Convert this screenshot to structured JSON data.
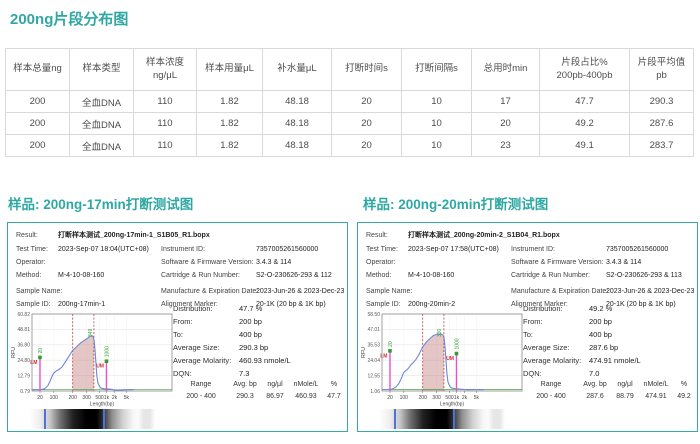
{
  "colors": {
    "accent_teal": "#2fa8a3",
    "curve_blue": "#6e87d8",
    "marker_magenta": "#ea4fd2",
    "marker_green": "#2f9e2f",
    "region_red": "#c03a3a",
    "gel_line_blue": "#4d72d8"
  },
  "page": {
    "title": "200ng片段分布图"
  },
  "table": {
    "headers": [
      "样本总量ng",
      "样本类型",
      "样本浓度\nng/μL",
      "样本用量μL",
      "补水量μL",
      "打断时间s",
      "打断间隔s",
      "总用时min",
      "片段占比%\n200pb-400pb",
      "片段平均值\npb"
    ],
    "rows": [
      [
        "200",
        "全血DNA",
        "110",
        "1.82",
        "48.18",
        "20",
        "10",
        "17",
        "47.7",
        "290.3"
      ],
      [
        "200",
        "全血DNA",
        "110",
        "1.82",
        "48.18",
        "20",
        "10",
        "20",
        "49.2",
        "287.6"
      ],
      [
        "200",
        "全血DNA",
        "110",
        "1.82",
        "48.18",
        "20",
        "10",
        "23",
        "49.1",
        "283.7"
      ]
    ]
  },
  "section_titles": [
    "样品: 200ng-17min打断测试图",
    "样品: 200ng-20min打断测试图"
  ],
  "field_labels": {
    "result": "Result:",
    "test_time": "Test Time:",
    "operator": "Operator:",
    "method": "Method:",
    "sample_name": "Sample Name:",
    "sample_id": "Sample ID:",
    "instrument_id": "Instrument ID:",
    "software_firmware": "Software & Firmware Version:",
    "cartridge_run": "Cartridge & Run Number:",
    "manufacture_expiration": "Manufacture & Expiration Date:",
    "alignment_marker": "Alignment Marker:"
  },
  "stat_labels": {
    "distribution": "Distribution:",
    "from": "From:",
    "to": "To:",
    "average_size": "Average Size:",
    "average_molarity": "Average Molarity:",
    "dqn": "DQN:"
  },
  "range_headers": {
    "range": "Range",
    "avg_bp": "Avg. bp",
    "ng_ul": "ng/μl",
    "nmole": "nMole/L",
    "pct": "%"
  },
  "panels": [
    {
      "result": "打断样本测试_200ng-17min-1_S1B05_R1.bopx",
      "test_time": "2023-Sep-07 18:04(UTC+08)",
      "operator": "",
      "method": "M-4-10-08-160",
      "sample_name": "",
      "sample_id": "200ng-17min-1",
      "instrument_id": "7357005261560000",
      "software_firmware": "3.4.3 & 114",
      "cartridge_run": "S2-O-230626-293 & 112",
      "manufacture_expiration": "2023-Jun-26 & 2023-Dec-23",
      "alignment_marker": "20-1K (20 bp & 1K bp)",
      "distribution": "47.7 %",
      "from": "200 bp",
      "to": "400 bp",
      "average_size": "290.3 bp",
      "average_molarity": "460.93 nmole/L",
      "dqn": "7.3",
      "range_row": {
        "range": "200 - 400",
        "avg_bp": "290.3",
        "ng_ul": "86.97",
        "nmole": "460.93",
        "pct": "47.7"
      }
    },
    {
      "result": "打断样本测试_200ng-20min-2_S1B04_R1.bopx",
      "test_time": "2023-Sep-07 17:58(UTC+08)",
      "operator": "",
      "method": "M-4-10-08-160",
      "sample_name": "",
      "sample_id": "200ng-20min-2",
      "instrument_id": "7357005261560000",
      "software_firmware": "3.4.3 & 114",
      "cartridge_run": "S2-O-230626-293 & 113",
      "manufacture_expiration": "2023-Jun-26 & 2023-Dec-23",
      "alignment_marker": "20-1K (20 bp & 1K bp)",
      "distribution": "49.2 %",
      "from": "200 bp",
      "to": "400 bp",
      "average_size": "287.6 bp",
      "average_molarity": "474.91 nmole/L",
      "dqn": "7.0",
      "range_row": {
        "range": "200 - 400",
        "avg_bp": "287.6",
        "ng_ul": "88.79",
        "nmole": "474.91",
        "pct": "49.2"
      }
    }
  ],
  "chart_data": [
    {
      "type": "line",
      "xlabel": "Length(bp)",
      "ylabel": "RFU",
      "ylim": [
        0.79,
        60.82
      ],
      "y_ticks": [
        "0.79",
        "12.79",
        "24.80",
        "36.80",
        "48.81",
        "60.82"
      ],
      "x_ticks": [
        {
          "label": "20",
          "bp": 20,
          "pos": 0.057
        },
        {
          "label": "100",
          "bp": 100,
          "pos": 0.156
        },
        {
          "label": "200",
          "bp": 200,
          "pos": 0.291
        },
        {
          "label": "300",
          "bp": 300,
          "pos": 0.39
        },
        {
          "label": "500",
          "bp": 500,
          "pos": 0.482
        },
        {
          "label": "1k",
          "bp": 1000,
          "pos": 0.532
        },
        {
          "label": "2k",
          "bp": 2000,
          "pos": 0.589
        },
        {
          "label": "5k",
          "bp": 5000,
          "pos": 0.674
        }
      ],
      "curve": [
        [
          8,
          1.8
        ],
        [
          15,
          1.8
        ],
        [
          22,
          1.9
        ],
        [
          35,
          2.5
        ],
        [
          50,
          5
        ],
        [
          65,
          8.5
        ],
        [
          80,
          12
        ],
        [
          95,
          14.5
        ],
        [
          110,
          16.5
        ],
        [
          120,
          17.5
        ],
        [
          135,
          19.5
        ],
        [
          155,
          24
        ],
        [
          175,
          28
        ],
        [
          200,
          32.5
        ],
        [
          225,
          35.5
        ],
        [
          255,
          38.5
        ],
        [
          285,
          40.5
        ],
        [
          315,
          42
        ],
        [
          345,
          43.5
        ],
        [
          370,
          44
        ],
        [
          390,
          43
        ],
        [
          405,
          40
        ],
        [
          420,
          32
        ],
        [
          435,
          22
        ],
        [
          450,
          13
        ],
        [
          470,
          7
        ],
        [
          500,
          4.5
        ],
        [
          560,
          3.2
        ],
        [
          650,
          2.8
        ],
        [
          800,
          2.5
        ],
        [
          1000,
          2.4
        ],
        [
          1400,
          2.2
        ],
        [
          2000,
          1.6
        ],
        [
          3000,
          1.5
        ],
        [
          5000,
          1.8
        ],
        [
          9000,
          1.9
        ]
      ],
      "markers": [
        {
          "bp": 20,
          "rfu": 27,
          "label": "20",
          "tag": "LM"
        },
        {
          "bp": 1000,
          "rfu": 24,
          "label": "1000",
          "tag": "UM"
        }
      ],
      "region": {
        "from_bp": 200,
        "to_bp": 400
      },
      "peak_label": {
        "bp": 349,
        "text": "349"
      }
    },
    {
      "type": "line",
      "xlabel": "Length(bp)",
      "ylabel": "RFU",
      "ylim": [
        1.06,
        58.5
      ],
      "y_ticks": [
        "1.06",
        "12.55",
        "24.04",
        "35.53",
        "47.01",
        "58.50"
      ],
      "x_ticks": [
        {
          "label": "20",
          "bp": 20,
          "pos": 0.057
        },
        {
          "label": "100",
          "bp": 100,
          "pos": 0.156
        },
        {
          "label": "200",
          "bp": 200,
          "pos": 0.291
        },
        {
          "label": "300",
          "bp": 300,
          "pos": 0.39
        },
        {
          "label": "500",
          "bp": 500,
          "pos": 0.482
        },
        {
          "label": "1k",
          "bp": 1000,
          "pos": 0.532
        },
        {
          "label": "2k",
          "bp": 2000,
          "pos": 0.589
        },
        {
          "label": "5k",
          "bp": 5000,
          "pos": 0.674
        }
      ],
      "curve": [
        [
          8,
          2.2
        ],
        [
          15,
          2.2
        ],
        [
          25,
          2.4
        ],
        [
          40,
          4
        ],
        [
          55,
          6.5
        ],
        [
          70,
          9.5
        ],
        [
          85,
          12.5
        ],
        [
          100,
          15
        ],
        [
          115,
          17.5
        ],
        [
          125,
          19.5
        ],
        [
          132,
          21
        ],
        [
          140,
          22
        ],
        [
          155,
          24.5
        ],
        [
          175,
          28.5
        ],
        [
          200,
          34
        ],
        [
          225,
          38
        ],
        [
          250,
          40.5
        ],
        [
          275,
          42.5
        ],
        [
          300,
          43.3
        ],
        [
          330,
          43.6
        ],
        [
          360,
          43.5
        ],
        [
          385,
          42.8
        ],
        [
          405,
          40
        ],
        [
          420,
          33
        ],
        [
          435,
          24
        ],
        [
          450,
          15
        ],
        [
          470,
          8
        ],
        [
          500,
          5
        ],
        [
          560,
          3.8
        ],
        [
          650,
          3.2
        ],
        [
          800,
          2.9
        ],
        [
          1000,
          2.7
        ],
        [
          1400,
          2.4
        ],
        [
          2000,
          2.1
        ],
        [
          3000,
          2
        ],
        [
          5000,
          2.1
        ],
        [
          9000,
          2.1
        ]
      ],
      "markers": [
        {
          "bp": 20,
          "rfu": 31,
          "label": "20",
          "tag": "LM"
        },
        {
          "bp": 1000,
          "rfu": 29,
          "label": "1000",
          "tag": "UM"
        }
      ],
      "region": {
        "from_bp": 200,
        "to_bp": 400
      },
      "peak_label": {
        "bp": 330,
        "text": "330"
      }
    }
  ]
}
